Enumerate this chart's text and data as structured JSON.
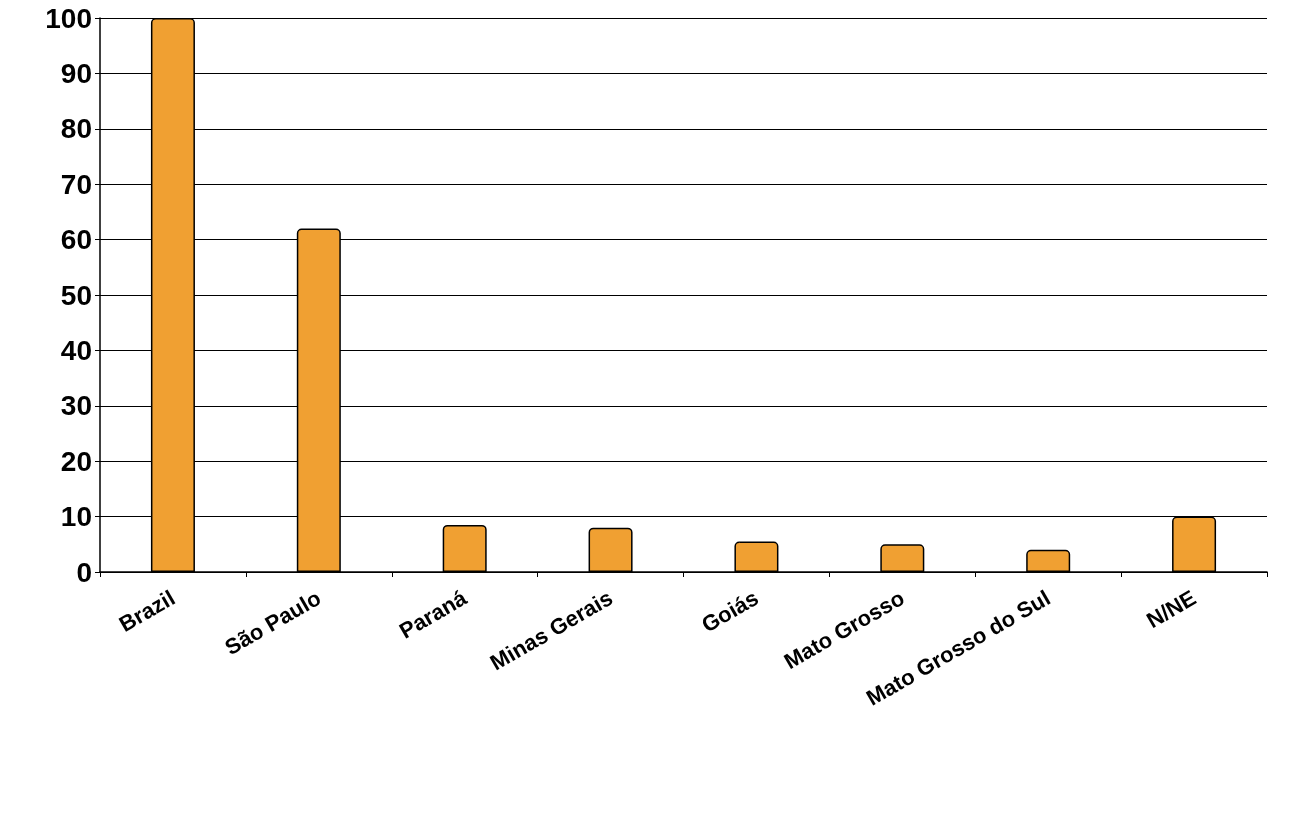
{
  "chart_data": {
    "type": "bar",
    "categories": [
      "Brazil",
      "São Paulo",
      "Paraná",
      "Minas Gerais",
      "Goiás",
      "Mato Grosso",
      "Mato Grosso do Sul",
      "N/NE"
    ],
    "values": [
      100,
      62,
      8.5,
      8,
      5.5,
      5,
      4,
      10
    ],
    "color": "#f0a032",
    "ylim": [
      0,
      100
    ],
    "yticks": [
      0,
      10,
      20,
      30,
      40,
      50,
      60,
      70,
      80,
      90,
      100
    ],
    "grid": "y"
  }
}
